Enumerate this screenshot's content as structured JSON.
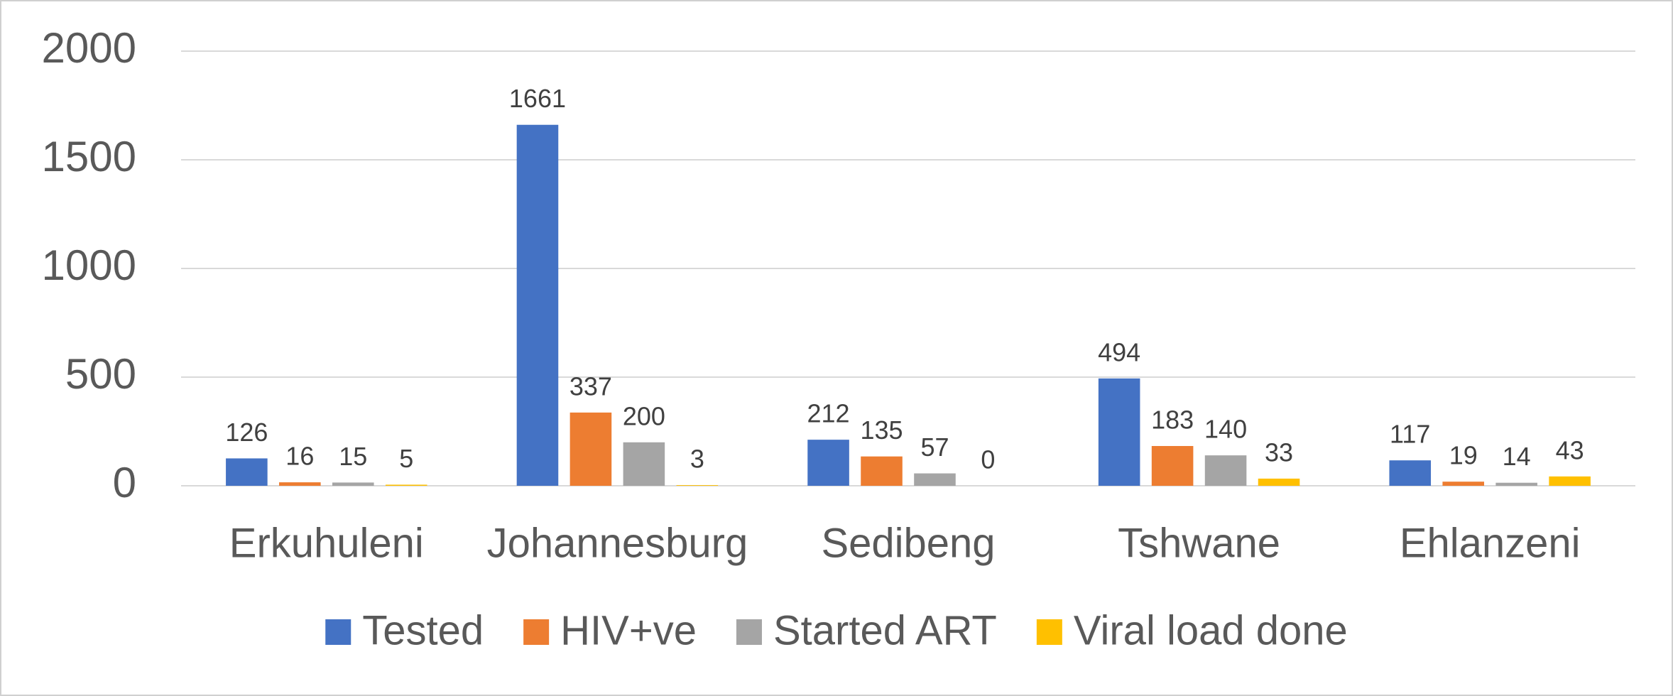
{
  "chart_data": {
    "type": "bar",
    "categories": [
      "Erkuhuleni",
      "Johannesburg",
      "Sedibeng",
      "Tshwane",
      "Ehlanzeni"
    ],
    "series": [
      {
        "name": "Tested",
        "color": "#4472c4",
        "values": [
          126,
          1661,
          212,
          494,
          117
        ]
      },
      {
        "name": "HIV+ve",
        "color": "#ed7d31",
        "values": [
          16,
          337,
          135,
          183,
          19
        ]
      },
      {
        "name": "Started ART",
        "color": "#a5a5a5",
        "values": [
          15,
          200,
          57,
          140,
          14
        ]
      },
      {
        "name": "Viral load done",
        "color": "#ffc000",
        "values": [
          5,
          3,
          0,
          33,
          43
        ]
      }
    ],
    "ylim": [
      0,
      2000
    ],
    "yticks": [
      0,
      500,
      1000,
      1500,
      2000
    ],
    "grid": true,
    "legend": "bottom"
  }
}
